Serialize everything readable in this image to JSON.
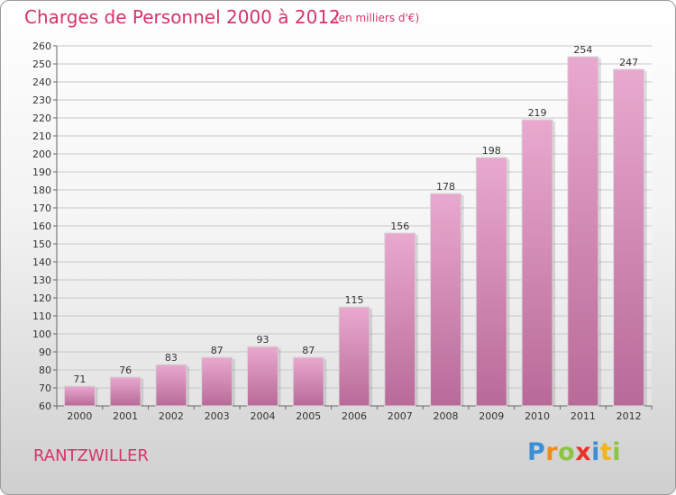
{
  "title": "Charges de Personnel 2000 à 2012",
  "subtitle": "(en milliers d'€)",
  "commune": "RANTZWILLER",
  "logo": {
    "letters": [
      "P",
      "r",
      "o",
      "x",
      "i",
      "t",
      "i"
    ],
    "colors": [
      "#3b8fd6",
      "#f08a1c",
      "#8cc63f",
      "#e8332a",
      "#3b8fd6",
      "#f0b41c",
      "#8cc63f"
    ]
  },
  "colors": {
    "bar_light": "#e9a9cf",
    "bar_dark": "#b86a98",
    "accent": "#d6336c"
  },
  "chart_data": {
    "type": "bar",
    "categories": [
      "2000",
      "2001",
      "2002",
      "2003",
      "2004",
      "2005",
      "2006",
      "2007",
      "2008",
      "2009",
      "2010",
      "2011",
      "2012"
    ],
    "values": [
      71,
      76,
      83,
      87,
      93,
      87,
      115,
      156,
      178,
      198,
      219,
      254,
      247
    ],
    "ylim": [
      60,
      260
    ],
    "yticks": [
      60,
      70,
      80,
      90,
      100,
      110,
      120,
      130,
      140,
      150,
      160,
      170,
      180,
      190,
      200,
      210,
      220,
      230,
      240,
      250,
      260
    ],
    "grid": true,
    "legend": "none"
  }
}
